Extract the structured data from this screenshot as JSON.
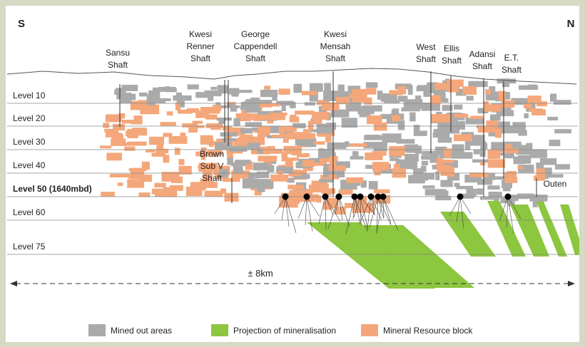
{
  "compass": {
    "south": "S",
    "north": "N"
  },
  "shafts": [
    {
      "lines": [
        "Sansu",
        "Shaft"
      ]
    },
    {
      "lines": [
        "Kwesi",
        "Renner",
        "Shaft"
      ]
    },
    {
      "lines": [
        "George",
        "Cappendell",
        "Shaft"
      ]
    },
    {
      "lines": [
        "Kwesi",
        "Mensah",
        "Shaft"
      ]
    },
    {
      "lines": [
        "West",
        "Shaft"
      ]
    },
    {
      "lines": [
        "Ellis",
        "Shaft"
      ]
    },
    {
      "lines": [
        "Adansi",
        "Shaft"
      ]
    },
    {
      "lines": [
        "E.T.",
        "Shaft"
      ]
    },
    {
      "lines": [
        "Brown",
        "Sub V",
        "Shaft"
      ]
    },
    {
      "lines": [
        "Outen"
      ]
    }
  ],
  "levels": [
    "Level 10",
    "Level 20",
    "Level 30",
    "Level 40",
    "Level 50 (1640mbd)",
    "Level 60",
    "Level 75"
  ],
  "scale": "± 8km",
  "legend": [
    "Mined out areas",
    "Projection of mineralisation",
    "Mineral Resource block"
  ]
}
